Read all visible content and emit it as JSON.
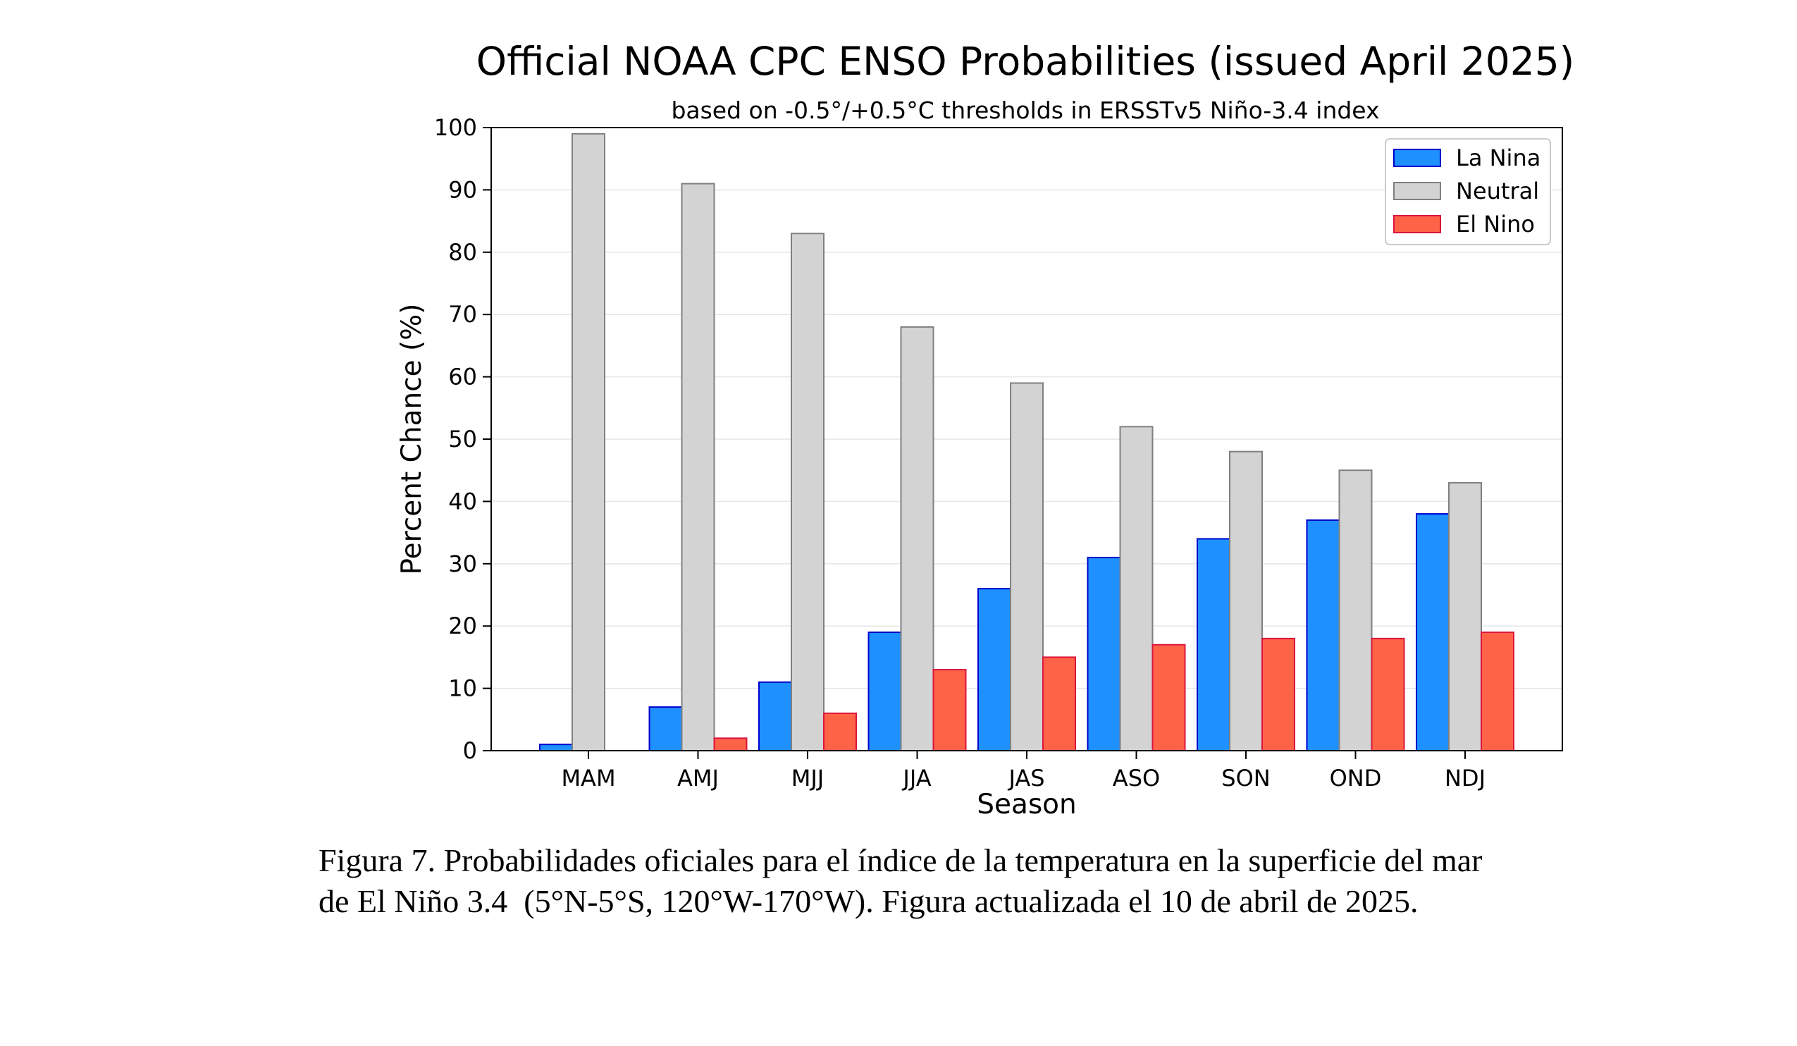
{
  "chart_data": {
    "type": "bar",
    "title": "Official NOAA CPC ENSO Probabilities (issued April 2025)",
    "subtitle": "based on -0.5°/+0.5°C thresholds in ERSSTv5 Niño-3.4 index",
    "xlabel": "Season",
    "ylabel": "Percent Chance (%)",
    "ylim": [
      0,
      100
    ],
    "yticks": [
      0,
      10,
      20,
      30,
      40,
      50,
      60,
      70,
      80,
      90,
      100
    ],
    "grid": true,
    "legend_position": "top-right",
    "categories": [
      "MAM",
      "AMJ",
      "MJJ",
      "JJA",
      "JAS",
      "ASO",
      "SON",
      "OND",
      "NDJ"
    ],
    "series": [
      {
        "name": "La Nina",
        "color": "#1e90ff",
        "edge_color": "#0000cd",
        "values": [
          1,
          7,
          11,
          19,
          26,
          31,
          34,
          37,
          38
        ]
      },
      {
        "name": "Neutral",
        "color": "#d3d3d3",
        "edge_color": "#808080",
        "values": [
          99,
          91,
          83,
          68,
          59,
          52,
          48,
          45,
          43
        ]
      },
      {
        "name": "El Nino",
        "color": "#ff6347",
        "edge_color": "#dc143c",
        "values": [
          0,
          2,
          6,
          13,
          15,
          17,
          18,
          18,
          19
        ]
      }
    ]
  },
  "caption": {
    "line1": "Figura 7. Probabilidades oficiales para el índice de la temperatura en la superficie del mar",
    "line2": "de El Niño 3.4  (5°N-5°S, 120°W-170°W). Figura actualizada el 10 de abril de 2025."
  }
}
